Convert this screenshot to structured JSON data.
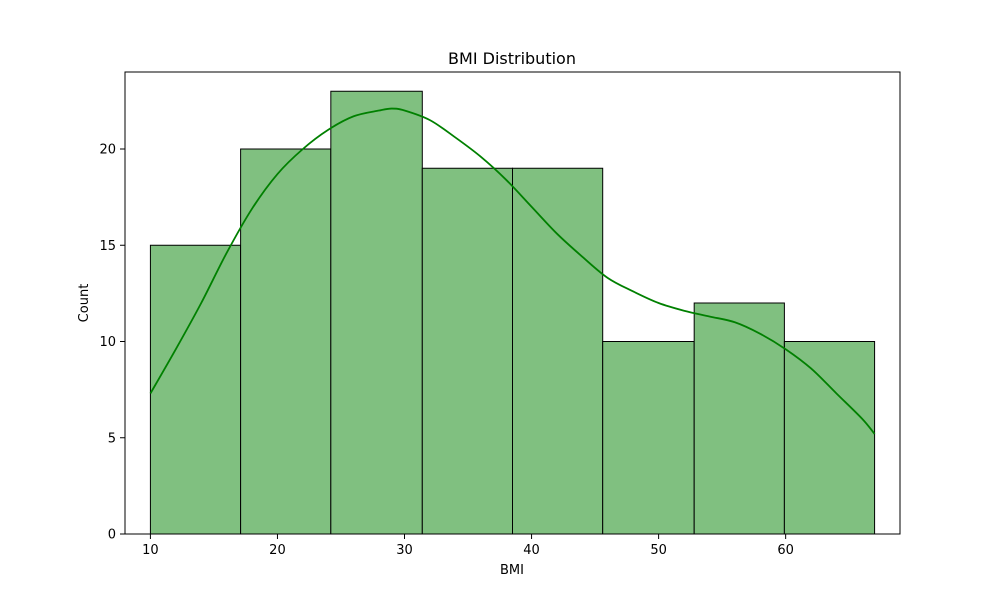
{
  "chart_data": {
    "type": "bar",
    "title": "BMI Distribution",
    "xlabel": "BMI",
    "ylabel": "Count",
    "xlim": [
      8.0,
      69.0
    ],
    "ylim": [
      0,
      24.0
    ],
    "xticks": [
      10,
      20,
      30,
      40,
      50,
      60
    ],
    "yticks": [
      0,
      5,
      10,
      15,
      20
    ],
    "bins": [
      {
        "start": 10.0,
        "end": 17.1,
        "count": 15
      },
      {
        "start": 17.1,
        "end": 24.2,
        "count": 20
      },
      {
        "start": 24.2,
        "end": 31.4,
        "count": 23
      },
      {
        "start": 31.4,
        "end": 38.5,
        "count": 19
      },
      {
        "start": 38.5,
        "end": 45.6,
        "count": 19
      },
      {
        "start": 45.6,
        "end": 52.8,
        "count": 10
      },
      {
        "start": 52.8,
        "end": 59.9,
        "count": 12
      },
      {
        "start": 59.9,
        "end": 67.0,
        "count": 10
      }
    ],
    "kde": {
      "x": [
        10,
        12,
        14,
        16,
        18,
        20,
        22,
        24,
        26,
        28,
        29,
        30,
        32,
        34,
        36,
        38,
        40,
        42,
        44,
        46,
        48,
        50,
        52,
        54,
        56,
        58,
        60,
        62,
        64,
        66,
        67
      ],
      "y": [
        7.3,
        9.6,
        12.0,
        14.6,
        16.9,
        18.7,
        20.0,
        21.0,
        21.7,
        22.0,
        22.1,
        22.0,
        21.5,
        20.6,
        19.6,
        18.4,
        17.0,
        15.6,
        14.4,
        13.3,
        12.6,
        12.0,
        11.6,
        11.3,
        11.0,
        10.4,
        9.6,
        8.6,
        7.3,
        6.0,
        5.2
      ]
    },
    "grid": false,
    "colors": {
      "bar_fill": "#80c080",
      "bar_edge": "#000000",
      "kde_line": "#008000"
    }
  }
}
